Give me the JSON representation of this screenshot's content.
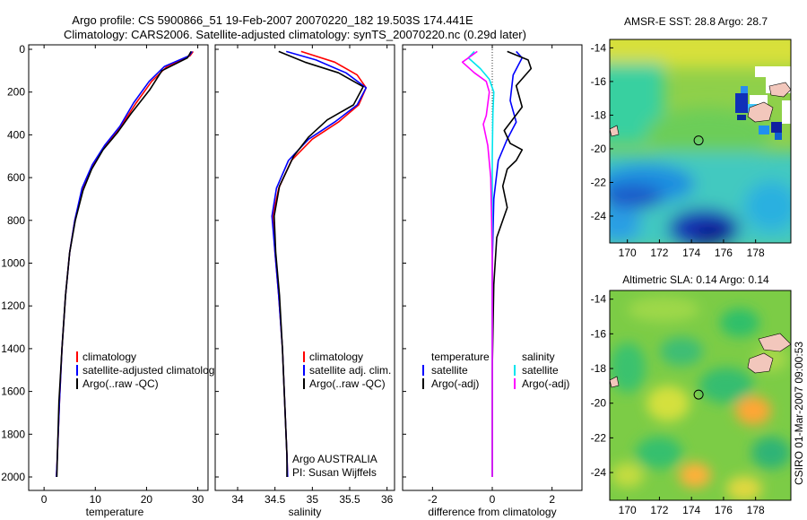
{
  "figure": {
    "title_line1": "Argo profile: CS 5900866_51 19-Feb-2007 20070220_182 19.503S 174.441E",
    "title_line2": "Climatology: CARS2006. Satellite-adjusted climatology: synTS_20070220.nc (0.29d later)",
    "side_credit": "CSIRO 01-Mar-2007 09:00:53"
  },
  "colors": {
    "climatology": "#ff0000",
    "satellite": "#0000ff",
    "argo": "#000000",
    "salinity_satellite": "#00e5ee",
    "salinity_argo": "#ff00ff"
  },
  "chart_data": [
    {
      "id": "temperature",
      "type": "line",
      "xlabel": "temperature",
      "xlim": [
        -3,
        32
      ],
      "ylim": [
        0,
        2050
      ],
      "x_ticks": [
        0,
        10,
        20,
        30
      ],
      "y_ticks": [
        0,
        200,
        400,
        600,
        800,
        1000,
        1200,
        1400,
        1600,
        1800,
        2000
      ],
      "y_reversed": true,
      "series": [
        {
          "name": "climatology",
          "color": "#ff0000",
          "points": [
            [
              29.1,
              10
            ],
            [
              28.5,
              30
            ],
            [
              24,
              80
            ],
            [
              21,
              150
            ],
            [
              18,
              250
            ],
            [
              15,
              360
            ],
            [
              12,
              450
            ],
            [
              9.5,
              540
            ],
            [
              7.5,
              650
            ],
            [
              6,
              800
            ],
            [
              5,
              950
            ],
            [
              4.2,
              1150
            ],
            [
              3.5,
              1400
            ],
            [
              3,
              1650
            ],
            [
              2.6,
              1900
            ],
            [
              2.4,
              2000
            ]
          ]
        },
        {
          "name": "satellite-adjusted climatology",
          "color": "#0000ff",
          "points": [
            [
              28.9,
              10
            ],
            [
              28.3,
              30
            ],
            [
              23.5,
              80
            ],
            [
              20.5,
              150
            ],
            [
              17.5,
              250
            ],
            [
              14.8,
              360
            ],
            [
              11.8,
              450
            ],
            [
              9.4,
              540
            ],
            [
              7.4,
              650
            ],
            [
              6,
              800
            ],
            [
              5,
              950
            ],
            [
              4.2,
              1150
            ],
            [
              3.5,
              1400
            ],
            [
              3,
              1650
            ],
            [
              2.6,
              1900
            ],
            [
              2.4,
              2000
            ]
          ]
        },
        {
          "name": "Argo(..raw -QC)",
          "color": "#000000",
          "points": [
            [
              28.7,
              10
            ],
            [
              28,
              40
            ],
            [
              23,
              100
            ],
            [
              20.6,
              190
            ],
            [
              17,
              300
            ],
            [
              14.3,
              390
            ],
            [
              11.5,
              470
            ],
            [
              9.3,
              560
            ],
            [
              7.6,
              660
            ],
            [
              6.1,
              800
            ],
            [
              5,
              950
            ],
            [
              4.2,
              1150
            ],
            [
              3.5,
              1400
            ],
            [
              2.9,
              1650
            ],
            [
              2.6,
              1900
            ],
            [
              2.5,
              2000
            ]
          ]
        }
      ],
      "legend": [
        "climatology",
        "satellite-adjusted climatology",
        "Argo(..raw -QC)"
      ]
    },
    {
      "id": "salinity",
      "type": "line",
      "xlabel": "salinity",
      "xlim": [
        33.7,
        36.1
      ],
      "ylim": [
        0,
        2050
      ],
      "x_ticks": [
        34,
        34.5,
        35,
        35.5,
        36
      ],
      "y_reversed": true,
      "series": [
        {
          "name": "climatology",
          "color": "#ff0000",
          "points": [
            [
              34.85,
              10
            ],
            [
              35.3,
              60
            ],
            [
              35.6,
              120
            ],
            [
              35.72,
              180
            ],
            [
              35.62,
              260
            ],
            [
              35.35,
              340
            ],
            [
              35,
              420
            ],
            [
              34.72,
              520
            ],
            [
              34.55,
              650
            ],
            [
              34.47,
              780
            ],
            [
              34.5,
              950
            ],
            [
              34.55,
              1150
            ],
            [
              34.6,
              1400
            ],
            [
              34.63,
              1650
            ],
            [
              34.66,
              1900
            ],
            [
              34.67,
              2000
            ]
          ]
        },
        {
          "name": "satellite adj. clim.",
          "color": "#0000ff",
          "points": [
            [
              34.65,
              10
            ],
            [
              35.05,
              50
            ],
            [
              35.45,
              110
            ],
            [
              35.72,
              180
            ],
            [
              35.6,
              260
            ],
            [
              35.3,
              340
            ],
            [
              34.95,
              420
            ],
            [
              34.68,
              520
            ],
            [
              34.52,
              650
            ],
            [
              34.46,
              780
            ],
            [
              34.5,
              950
            ],
            [
              34.55,
              1150
            ],
            [
              34.6,
              1400
            ],
            [
              34.63,
              1650
            ],
            [
              34.66,
              1900
            ],
            [
              34.67,
              2000
            ]
          ]
        },
        {
          "name": "Argo(..raw -QC)",
          "color": "#000000",
          "points": [
            [
              34.55,
              10
            ],
            [
              34.9,
              60
            ],
            [
              35.35,
              110
            ],
            [
              35.68,
              175
            ],
            [
              35.55,
              260
            ],
            [
              35.2,
              330
            ],
            [
              34.95,
              410
            ],
            [
              34.75,
              500
            ],
            [
              34.56,
              640
            ],
            [
              34.49,
              780
            ],
            [
              34.51,
              950
            ],
            [
              34.56,
              1150
            ],
            [
              34.6,
              1400
            ],
            [
              34.63,
              1650
            ],
            [
              34.66,
              1900
            ],
            [
              34.66,
              2000
            ]
          ]
        }
      ],
      "legend": [
        "climatology",
        "satellite adj. clim.",
        "Argo(..raw -QC)"
      ],
      "annotation_line1": "Argo AUSTRALIA",
      "annotation_line2": "PI: Susan Wijffels"
    },
    {
      "id": "difference",
      "type": "line",
      "xlabel": "difference from climatology",
      "xlim": [
        -3,
        3
      ],
      "ylim": [
        0,
        2050
      ],
      "x_ticks": [
        -2,
        0,
        2
      ],
      "y_reversed": true,
      "series": [
        {
          "name": "temperature satellite",
          "color": "#0000ff",
          "points": [
            [
              0.8,
              10
            ],
            [
              1.0,
              40
            ],
            [
              0.7,
              120
            ],
            [
              0.6,
              240
            ],
            [
              0.8,
              340
            ],
            [
              0.5,
              420
            ],
            [
              0.2,
              520
            ],
            [
              0.05,
              700
            ],
            [
              0,
              1000
            ],
            [
              0,
              1500
            ],
            [
              0,
              2000
            ]
          ]
        },
        {
          "name": "temperature Argo(-adj)",
          "color": "#000000",
          "points": [
            [
              0.5,
              10
            ],
            [
              1.2,
              50
            ],
            [
              1.3,
              90
            ],
            [
              0.8,
              170
            ],
            [
              1.0,
              270
            ],
            [
              0.4,
              380
            ],
            [
              0.6,
              440
            ],
            [
              1.0,
              470
            ],
            [
              0.8,
              520
            ],
            [
              0.5,
              560
            ],
            [
              0.35,
              640
            ],
            [
              0.5,
              740
            ],
            [
              0.15,
              880
            ],
            [
              0.05,
              1100
            ],
            [
              0,
              1500
            ],
            [
              0,
              2000
            ]
          ]
        },
        {
          "name": "salinity satellite",
          "color": "#00e5ee",
          "points": [
            [
              -0.6,
              10
            ],
            [
              -0.8,
              40
            ],
            [
              -0.4,
              90
            ],
            [
              -0.1,
              140
            ],
            [
              0.05,
              200
            ],
            [
              0.02,
              300
            ],
            [
              0,
              500
            ],
            [
              0,
              1000
            ],
            [
              0,
              2000
            ]
          ]
        },
        {
          "name": "salinity Argo(-adj)",
          "color": "#ff00ff",
          "points": [
            [
              -0.5,
              10
            ],
            [
              -1.0,
              60
            ],
            [
              -0.6,
              110
            ],
            [
              -0.2,
              150
            ],
            [
              -0.1,
              200
            ],
            [
              -0.2,
              310
            ],
            [
              -0.3,
              350
            ],
            [
              -0.15,
              450
            ],
            [
              -0.05,
              600
            ],
            [
              -0.02,
              800
            ],
            [
              0,
              1000
            ],
            [
              0,
              2000
            ]
          ]
        }
      ],
      "legend_temperature_heading": "temperature",
      "legend_salinity_heading": "salinity",
      "legend_temperature": [
        "satellite",
        "Argo(-adj)"
      ],
      "legend_salinity": [
        "satellite",
        "Argo(-adj)"
      ]
    },
    {
      "id": "sst_map",
      "type": "heatmap",
      "title": "AMSR-E SST: 28.8 Argo: 28.7",
      "x_ticks": [
        170,
        172,
        174,
        176,
        178
      ],
      "y_ticks": [
        -14,
        -16,
        -18,
        -20,
        -22,
        -24
      ],
      "xlim": [
        168.9,
        180.2
      ],
      "ylim": [
        -25.6,
        -13.5
      ],
      "argo_position": [
        174.441,
        -19.503
      ]
    },
    {
      "id": "sla_map",
      "type": "heatmap",
      "title": "Altimetric SLA: 0.14 Argo: 0.14",
      "x_ticks": [
        170,
        172,
        174,
        176,
        178
      ],
      "y_ticks": [
        -14,
        -16,
        -18,
        -20,
        -22,
        -24
      ],
      "xlim": [
        168.9,
        180.2
      ],
      "ylim": [
        -25.6,
        -13.5
      ],
      "argo_position": [
        174.441,
        -19.503
      ]
    }
  ]
}
